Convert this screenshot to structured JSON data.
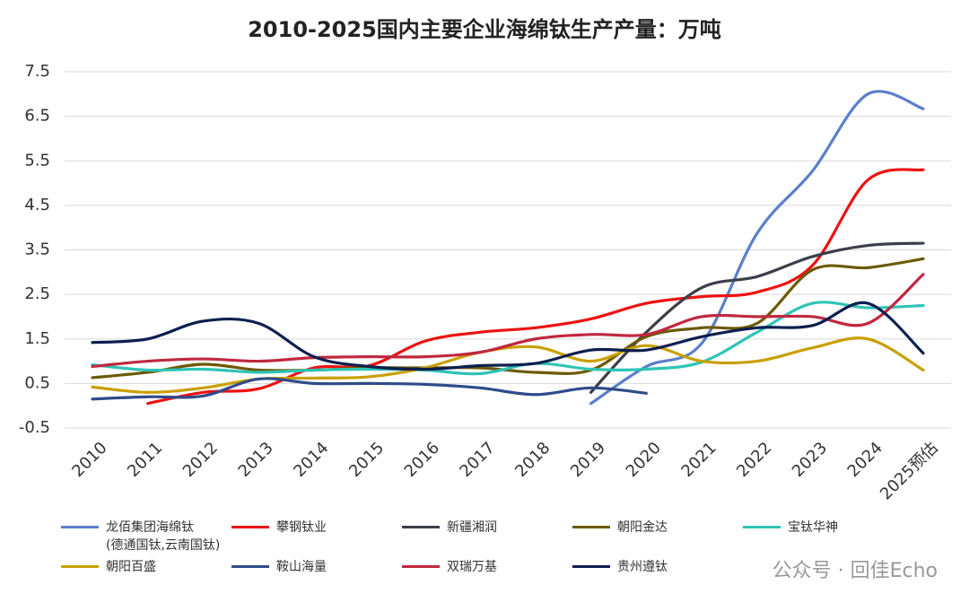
{
  "chart_data": {
    "type": "line",
    "title": "2010-2025国内主要企业海绵钛生产产量：万吨",
    "categories": [
      "2010",
      "2011",
      "2012",
      "2013",
      "2014",
      "2015",
      "2016",
      "2017",
      "2018",
      "2019",
      "2020",
      "2021",
      "2022",
      "2023",
      "2024",
      "2025预估"
    ],
    "ylim": [
      -0.5,
      7.5
    ],
    "yticks": [
      -0.5,
      0.5,
      1.5,
      2.5,
      3.5,
      4.5,
      5.5,
      6.5,
      7.5
    ],
    "grid": true,
    "watermark": "公众号 · 回佳Echo",
    "series": [
      {
        "name": "龙佰集团海绵钛\n(德通国钛,云南国钛)",
        "color": "#5a7fcc",
        "values": [
          null,
          null,
          null,
          null,
          null,
          null,
          null,
          null,
          null,
          0.05,
          0.88,
          1.4,
          3.87,
          5.27,
          7.0,
          6.67
        ]
      },
      {
        "name": "攀钢钛业",
        "color": "#ee1111",
        "values": [
          null,
          0.05,
          0.3,
          0.38,
          0.85,
          0.9,
          1.45,
          1.65,
          1.75,
          1.95,
          2.3,
          2.45,
          2.55,
          3.15,
          5.07,
          5.3
        ]
      },
      {
        "name": "新疆湘润",
        "color": "#3a3f4a",
        "values": [
          null,
          null,
          null,
          null,
          null,
          null,
          null,
          null,
          null,
          0.3,
          1.65,
          2.65,
          2.9,
          3.35,
          3.6,
          3.65
        ]
      },
      {
        "name": "朝阳金达",
        "color": "#6b5a00",
        "values": [
          0.63,
          0.75,
          0.93,
          0.8,
          0.8,
          0.85,
          0.85,
          0.85,
          0.75,
          0.8,
          1.55,
          1.75,
          1.85,
          3.05,
          3.1,
          3.3
        ]
      },
      {
        "name": "宝钛华神",
        "color": "#2ec4b6",
        "values": [
          0.92,
          0.8,
          0.82,
          0.75,
          0.8,
          0.82,
          0.8,
          0.72,
          0.95,
          0.82,
          0.82,
          0.98,
          1.65,
          2.3,
          2.2,
          2.25
        ]
      },
      {
        "name": "朝阳百盛",
        "color": "#c9a000",
        "values": [
          0.42,
          0.3,
          0.4,
          0.6,
          0.62,
          0.65,
          0.85,
          1.2,
          1.32,
          1.0,
          1.35,
          1.0,
          1.0,
          1.3,
          1.5,
          0.8
        ]
      },
      {
        "name": "鞍山海量",
        "color": "#2f4b8a",
        "values": [
          0.15,
          0.2,
          0.22,
          0.6,
          0.5,
          0.5,
          0.48,
          0.4,
          0.25,
          0.4,
          0.28,
          null,
          null,
          null,
          null,
          null
        ]
      },
      {
        "name": "双瑞万基",
        "color": "#c0283f",
        "values": [
          0.88,
          1.0,
          1.05,
          1.0,
          1.08,
          1.1,
          1.1,
          1.2,
          1.5,
          1.6,
          1.6,
          2.0,
          2.0,
          2.0,
          1.85,
          2.95
        ]
      },
      {
        "name": "贵州遵钛",
        "color": "#0d1f4f",
        "values": [
          1.42,
          1.5,
          1.9,
          1.85,
          1.1,
          0.88,
          0.82,
          0.9,
          0.95,
          1.25,
          1.25,
          1.55,
          1.75,
          1.8,
          2.3,
          1.18
        ]
      }
    ]
  }
}
